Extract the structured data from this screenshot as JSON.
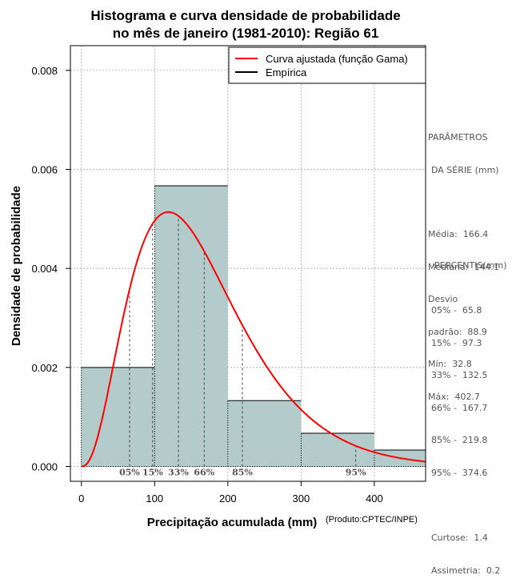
{
  "title_line1": "Histograma e curva densidade de probabilidade",
  "title_line2": "no mês de janeiro (1981-2010): Região 61",
  "credit": "(Produto:CPTEC/INPE)",
  "legend": {
    "fitted": "Curva ajustada (função Gama)",
    "empirical": "Empírica"
  },
  "parameters": {
    "header1": "PARÂMETROS",
    "header2": "DA SÉRIE (mm)",
    "mean": "Média:  166.4",
    "median": "Mediana:  144.1",
    "std1": "Desvio",
    "std2": "padrão:  88.9",
    "min": "Mín:  32.8",
    "max": "Máx:  402.7"
  },
  "percentiles": {
    "header": "PERCENTIS(mm)",
    "rows": [
      "05% -  65.8",
      "15% -  97.3",
      "33% -  132.5",
      "66% -  167.7",
      "85% -  219.8",
      "95% -  374.6"
    ],
    "kurtosis": "Curtose:  1.4",
    "skewness": "Assimetria:  0.2"
  },
  "colors": {
    "bar": "#b4cbcb",
    "curve": "#ff0000",
    "grid": "#aaaaaa"
  },
  "chart_data": {
    "type": "histogram",
    "xlabel": "Precipitação acumulada (mm)",
    "ylabel": "Densidade de probabilidade",
    "xlim": [
      -15,
      470
    ],
    "ylim": [
      -0.0003,
      0.0085
    ],
    "xticks": [
      0,
      100,
      200,
      300,
      400
    ],
    "xtick_labels": [
      "0",
      "100",
      "200",
      "300",
      "400"
    ],
    "yticks": [
      0,
      0.002,
      0.004,
      0.006,
      0.008
    ],
    "ytick_labels": [
      "0.000",
      "0.002",
      "0.004",
      "0.006",
      "0.008"
    ],
    "bins": [
      {
        "from": 0,
        "to": 100,
        "density": 0.002
      },
      {
        "from": 100,
        "to": 200,
        "density": 0.00567
      },
      {
        "from": 200,
        "to": 300,
        "density": 0.00133
      },
      {
        "from": 300,
        "to": 400,
        "density": 0.00067
      },
      {
        "from": 400,
        "to": 470,
        "density": 0.00033
      }
    ],
    "gamma_fit": {
      "shape": 3.5,
      "scale": 47.5
    },
    "percentile_lines": [
      {
        "label": "05%",
        "x": 65.8
      },
      {
        "label": "15%",
        "x": 97.3
      },
      {
        "label": "33%",
        "x": 132.5
      },
      {
        "label": "66%",
        "x": 167.7
      },
      {
        "label": "85%",
        "x": 219.8
      },
      {
        "label": "95%",
        "x": 374.6
      }
    ],
    "series": [
      {
        "name": "Curva ajustada (função Gama)",
        "kind": "line"
      },
      {
        "name": "Empírica",
        "kind": "bars"
      }
    ]
  }
}
